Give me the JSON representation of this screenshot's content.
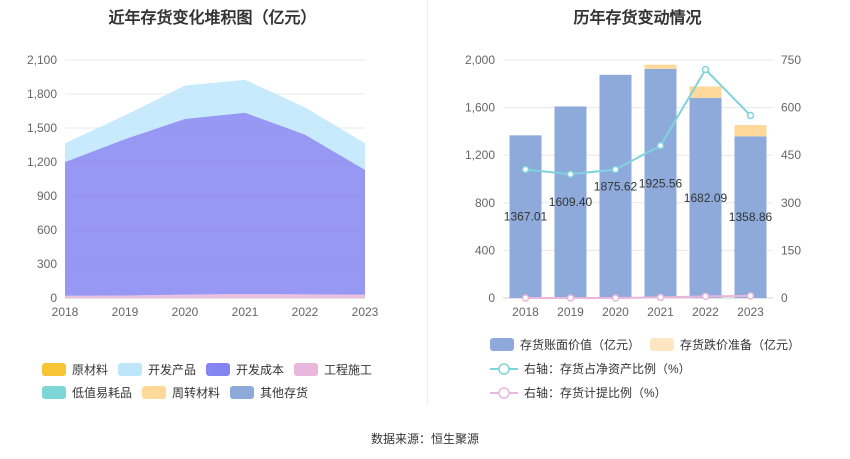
{
  "left_title": "近年存货变化堆积图（亿元）",
  "right_title": "历年存货变动情况",
  "source": "数据来源：恒生聚源",
  "chart_data": [
    {
      "type": "area",
      "stacked": true,
      "title": "近年存货变化堆积图（亿元）",
      "x": [
        "2018",
        "2019",
        "2020",
        "2021",
        "2022",
        "2023"
      ],
      "ylim": [
        0,
        2100
      ],
      "yticks": [
        "0",
        "300",
        "600",
        "900",
        "1,200",
        "1,500",
        "1,800",
        "2,100"
      ],
      "series": [
        {
          "name": "原材料",
          "color": "#f7c435",
          "values": [
            0,
            0,
            0,
            0,
            0,
            0
          ]
        },
        {
          "name": "低值易耗品",
          "color": "#7dd6d6",
          "values": [
            0,
            0,
            0,
            0,
            0,
            0
          ]
        },
        {
          "name": "工程施工",
          "color": "#e9b6dc",
          "values": [
            20,
            22,
            30,
            35,
            32,
            30
          ]
        },
        {
          "name": "周转材料",
          "color": "#ffd99a",
          "values": [
            0,
            0,
            0,
            0,
            0,
            0
          ]
        },
        {
          "name": "开发成本",
          "color": "#8585f2",
          "values": [
            1180,
            1380,
            1550,
            1600,
            1410,
            1100
          ]
        },
        {
          "name": "其他存货",
          "color": "#8eaadb",
          "values": [
            0,
            0,
            0,
            0,
            0,
            0
          ]
        },
        {
          "name": "开发产品",
          "color": "#bde6fb",
          "values": [
            165,
            210,
            295,
            290,
            240,
            235
          ]
        }
      ],
      "legend": [
        "原材料",
        "开发产品",
        "开发成本",
        "工程施工",
        "低值易耗品",
        "周转材料",
        "其他存货"
      ],
      "grid": true,
      "legend_position": "bottom"
    },
    {
      "type": "bar",
      "title": "历年存货变动情况",
      "categories": [
        "2018",
        "2019",
        "2020",
        "2021",
        "2022",
        "2023"
      ],
      "ylim": [
        0,
        2000
      ],
      "yticks": [
        "0",
        "400",
        "800",
        "1,200",
        "1,600",
        "2,000"
      ],
      "y2lim": [
        0,
        750
      ],
      "y2ticks": [
        "0",
        "150",
        "300",
        "450",
        "600",
        "750"
      ],
      "bars": [
        {
          "name": "存货账面价值（亿元）",
          "color": "#8eaadb",
          "values": [
            1367.01,
            1609.4,
            1875.62,
            1925.56,
            1682.09,
            1358.86
          ],
          "labels": [
            "1367.01",
            "1609.40",
            "1875.62",
            "1925.56",
            "1682.09",
            "1358.86"
          ]
        },
        {
          "name": "存货跌价准备（亿元）",
          "color": "#ffd99a",
          "values": [
            0,
            0,
            0,
            35,
            95,
            95
          ]
        }
      ],
      "lines": [
        {
          "name": "右轴：存货占净资产比例（%）",
          "color": "#7fd3dc",
          "axis": "right",
          "values": [
            405,
            390,
            405,
            480,
            720,
            575
          ]
        },
        {
          "name": "右轴：存货计提比例（%）",
          "color": "#e9b6dc",
          "axis": "right",
          "values": [
            0,
            0,
            0,
            1.8,
            5.3,
            6.5
          ]
        }
      ],
      "grid": true,
      "legend_position": "bottom"
    }
  ]
}
